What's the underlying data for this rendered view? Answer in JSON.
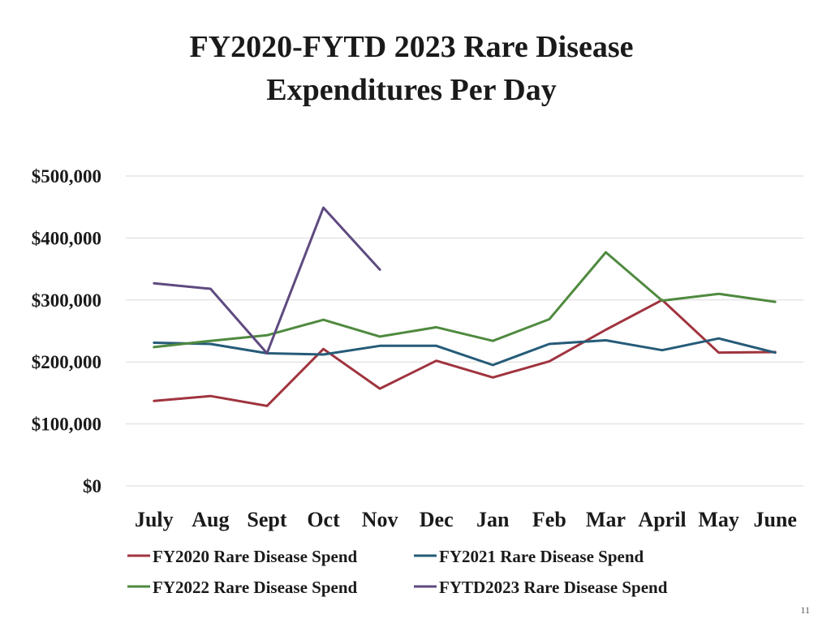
{
  "page": {
    "title_lines": [
      "FY2020-FYTD 2023 Rare Disease",
      "Expenditures Per Day"
    ],
    "page_number": "11"
  },
  "chart_data": {
    "type": "line",
    "title": "FY2020-FYTD 2023 Rare Disease Expenditures Per Day",
    "categories": [
      "July",
      "Aug",
      "Sept",
      "Oct",
      "Nov",
      "Dec",
      "Jan",
      "Feb",
      "Mar",
      "April",
      "May",
      "June"
    ],
    "yticks": [
      "$0",
      "$100,000",
      "$200,000",
      "$300,000",
      "$400,000",
      "$500,000"
    ],
    "ylim": [
      0,
      500000
    ],
    "grid": true,
    "legend_position": "bottom",
    "series": [
      {
        "name": "FY2020 Rare Disease Spend",
        "color": "#a0343f",
        "values": [
          137000,
          145000,
          129000,
          221000,
          157000,
          202000,
          175000,
          201000,
          252000,
          300000,
          215000,
          216000
        ]
      },
      {
        "name": "FY2021 Rare Disease Spend",
        "color": "#255b78",
        "values": [
          231000,
          229000,
          214000,
          212000,
          226000,
          226000,
          195000,
          229000,
          235000,
          219000,
          238000,
          215000
        ]
      },
      {
        "name": "FY2022 Rare Disease Spend",
        "color": "#4f8a3f",
        "values": [
          224000,
          234000,
          243000,
          268000,
          241000,
          256000,
          234000,
          269000,
          377000,
          299000,
          310000,
          297000
        ]
      },
      {
        "name": "FYTD2023 Rare Disease Spend",
        "color": "#5e4a80",
        "values": [
          327000,
          318000,
          214000,
          449000,
          349000,
          null,
          null,
          null,
          null,
          null,
          null,
          null
        ]
      }
    ]
  }
}
